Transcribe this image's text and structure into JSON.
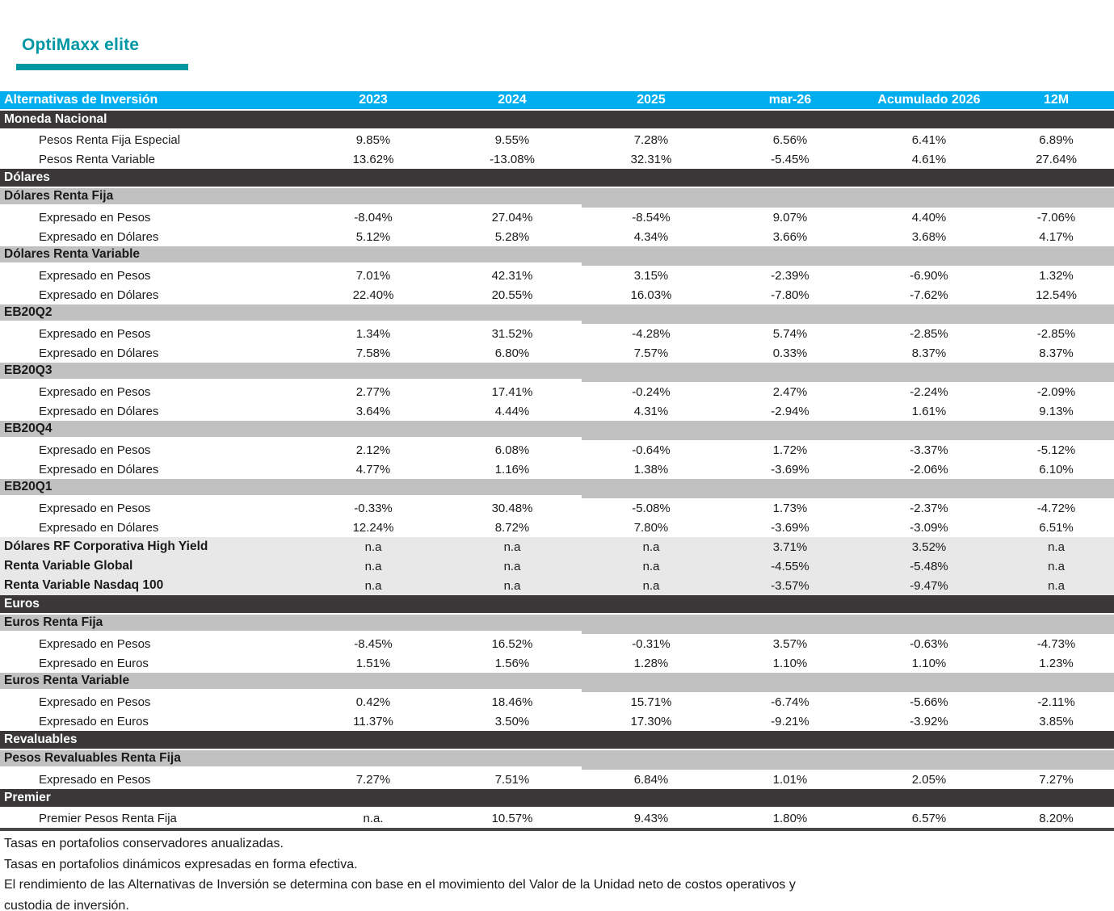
{
  "title": "OptiMaxx elite",
  "colors": {
    "accent_teal": "#0097A5",
    "header_cyan": "#00AEEF",
    "section_dark": "#3A3738",
    "subsection_gray": "#C1C1C1",
    "note_gray": "#E8E8E8"
  },
  "table": {
    "header": {
      "label": "Alternativas de Inversión",
      "columns": [
        "2023",
        "2024",
        "2025",
        "mar-26",
        "Acumulado 2026",
        "12M"
      ]
    },
    "rows": [
      {
        "type": "section",
        "label": "Moneda Nacional"
      },
      {
        "type": "data",
        "label": "Pesos Renta Fija Especial",
        "values": [
          "9.85%",
          "9.55%",
          "7.28%",
          "6.56%",
          "6.41%",
          "6.89%"
        ]
      },
      {
        "type": "data",
        "label": "Pesos Renta Variable",
        "values": [
          "13.62%",
          "-13.08%",
          "32.31%",
          "-5.45%",
          "4.61%",
          "27.64%"
        ]
      },
      {
        "type": "section",
        "label": "Dólares"
      },
      {
        "type": "subsection",
        "label": "Dólares Renta Fija"
      },
      {
        "type": "data",
        "label": "Expresado en Pesos",
        "values": [
          "-8.04%",
          "27.04%",
          "-8.54%",
          "9.07%",
          "4.40%",
          "-7.06%"
        ]
      },
      {
        "type": "data",
        "label": "Expresado en Dólares",
        "values": [
          "5.12%",
          "5.28%",
          "4.34%",
          "3.66%",
          "3.68%",
          "4.17%"
        ]
      },
      {
        "type": "subsection",
        "label": "Dólares Renta Variable"
      },
      {
        "type": "data",
        "label": "Expresado en Pesos",
        "values": [
          "7.01%",
          "42.31%",
          "3.15%",
          "-2.39%",
          "-6.90%",
          "1.32%"
        ]
      },
      {
        "type": "data",
        "label": "Expresado en Dólares",
        "values": [
          "22.40%",
          "20.55%",
          "16.03%",
          "-7.80%",
          "-7.62%",
          "12.54%"
        ]
      },
      {
        "type": "subsection",
        "label": "EB20Q2"
      },
      {
        "type": "data",
        "label": "Expresado en Pesos",
        "values": [
          "1.34%",
          "31.52%",
          "-4.28%",
          "5.74%",
          "-2.85%",
          "-2.85%"
        ]
      },
      {
        "type": "data",
        "label": "Expresado en Dólares",
        "values": [
          "7.58%",
          "6.80%",
          "7.57%",
          "0.33%",
          "8.37%",
          "8.37%"
        ]
      },
      {
        "type": "subsection",
        "label": "EB20Q3"
      },
      {
        "type": "data",
        "label": "Expresado en Pesos",
        "values": [
          "2.77%",
          "17.41%",
          "-0.24%",
          "2.47%",
          "-2.24%",
          "-2.09%"
        ]
      },
      {
        "type": "data",
        "label": "Expresado en Dólares",
        "values": [
          "3.64%",
          "4.44%",
          "4.31%",
          "-2.94%",
          "1.61%",
          "9.13%"
        ]
      },
      {
        "type": "subsection",
        "label": "EB20Q4"
      },
      {
        "type": "data",
        "label": "Expresado en Pesos",
        "values": [
          "2.12%",
          "6.08%",
          "-0.64%",
          "1.72%",
          "-3.37%",
          "-5.12%"
        ]
      },
      {
        "type": "data",
        "label": "Expresado en Dólares",
        "values": [
          "4.77%",
          "1.16%",
          "1.38%",
          "-3.69%",
          "-2.06%",
          "6.10%"
        ]
      },
      {
        "type": "subsection",
        "label": "EB20Q1"
      },
      {
        "type": "data",
        "label": "Expresado en Pesos",
        "values": [
          "-0.33%",
          "30.48%",
          "-5.08%",
          "1.73%",
          "-2.37%",
          "-4.72%"
        ]
      },
      {
        "type": "data",
        "label": "Expresado en Dólares",
        "values": [
          "12.24%",
          "8.72%",
          "7.80%",
          "-3.69%",
          "-3.09%",
          "6.51%"
        ]
      },
      {
        "type": "flat",
        "label": "Dólares RF Corporativa High Yield",
        "values": [
          "n.a",
          "n.a",
          "n.a",
          "3.71%",
          "3.52%",
          "n.a"
        ]
      },
      {
        "type": "flat",
        "label": "Renta Variable Global",
        "values": [
          "n.a",
          "n.a",
          "n.a",
          "-4.55%",
          "-5.48%",
          "n.a"
        ]
      },
      {
        "type": "flat",
        "label": "Renta Variable Nasdaq 100",
        "values": [
          "n.a",
          "n.a",
          "n.a",
          "-3.57%",
          "-9.47%",
          "n.a"
        ]
      },
      {
        "type": "section",
        "label": "Euros"
      },
      {
        "type": "subsection",
        "label": "Euros Renta Fija"
      },
      {
        "type": "data",
        "label": "Expresado en Pesos",
        "values": [
          "-8.45%",
          "16.52%",
          "-0.31%",
          "3.57%",
          "-0.63%",
          "-4.73%"
        ]
      },
      {
        "type": "data",
        "label": "Expresado en Euros",
        "values": [
          "1.51%",
          "1.56%",
          "1.28%",
          "1.10%",
          "1.10%",
          "1.23%"
        ]
      },
      {
        "type": "subsection",
        "label": "Euros Renta Variable"
      },
      {
        "type": "data",
        "label": "Expresado en Pesos",
        "values": [
          "0.42%",
          "18.46%",
          "15.71%",
          "-6.74%",
          "-5.66%",
          "-2.11%"
        ]
      },
      {
        "type": "data",
        "label": "Expresado en Euros",
        "values": [
          "11.37%",
          "3.50%",
          "17.30%",
          "-9.21%",
          "-3.92%",
          "3.85%"
        ]
      },
      {
        "type": "section",
        "label": "Revaluables"
      },
      {
        "type": "subsection",
        "label": "Pesos Revaluables Renta Fija"
      },
      {
        "type": "data",
        "label": "Expresado en Pesos",
        "values": [
          "7.27%",
          "7.51%",
          "6.84%",
          "1.01%",
          "2.05%",
          "7.27%"
        ]
      },
      {
        "type": "section",
        "label": "Premier"
      },
      {
        "type": "data",
        "label": "Premier Pesos Renta Fija",
        "values": [
          "n.a.",
          "10.57%",
          "9.43%",
          "1.80%",
          "6.57%",
          "8.20%"
        ]
      }
    ]
  },
  "footnotes": [
    "Tasas en portafolios conservadores anualizadas.",
    "Tasas en portafolios dinámicos expresadas en forma efectiva.",
    "El rendimiento de las Alternativas de Inversión se determina con base en el movimiento del Valor de la Unidad neto de costos operativos y",
    "custodia de inversión."
  ]
}
